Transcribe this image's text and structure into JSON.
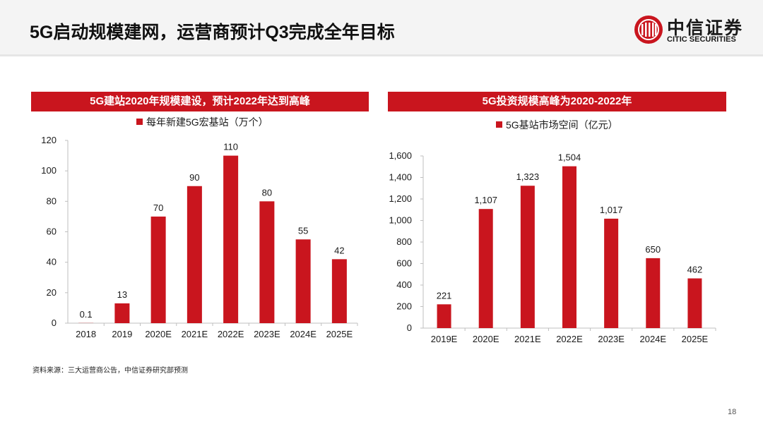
{
  "page": {
    "title": "5G启动规模建网，运营商预计Q3完成全年目标",
    "source": "资料来源：三大运营商公告，中信证券研究部预测",
    "page_number": "18"
  },
  "logo": {
    "name_cn": "中信证券",
    "name_en": "CITIC SECURITIES"
  },
  "colors": {
    "accent": "#c9151e",
    "axis": "#bfbfbf"
  },
  "chart_data": [
    {
      "type": "bar",
      "title": "5G建站2020年规模建设，预计2022年达到高峰",
      "legend": "每年新建5G宏基站（万个）",
      "categories": [
        "2018",
        "2019",
        "2020E",
        "2021E",
        "2022E",
        "2023E",
        "2024E",
        "2025E"
      ],
      "values": [
        0.1,
        13,
        70,
        90,
        110,
        80,
        55,
        42
      ],
      "value_labels": [
        "0.1",
        "13",
        "70",
        "90",
        "110",
        "80",
        "55",
        "42"
      ],
      "ylim": [
        0,
        120
      ],
      "yticks": [
        "0",
        "20",
        "40",
        "60",
        "80",
        "100",
        "120"
      ],
      "ytick_values": [
        0,
        20,
        40,
        60,
        80,
        100,
        120
      ]
    },
    {
      "type": "bar",
      "title": "5G投资规模高峰为2020-2022年",
      "legend": "5G基站市场空间（亿元）",
      "categories": [
        "2019E",
        "2020E",
        "2021E",
        "2022E",
        "2023E",
        "2024E",
        "2025E"
      ],
      "values": [
        221,
        1107,
        1323,
        1504,
        1017,
        650,
        462
      ],
      "value_labels": [
        "221",
        "1,107",
        "1,323",
        "1,504",
        "1,017",
        "650",
        "462"
      ],
      "ylim": [
        0,
        1600
      ],
      "yticks": [
        "0",
        "200",
        "400",
        "600",
        "800",
        "1,000",
        "1,200",
        "1,400",
        "1,600"
      ],
      "ytick_values": [
        0,
        200,
        400,
        600,
        800,
        1000,
        1200,
        1400,
        1600
      ]
    }
  ]
}
